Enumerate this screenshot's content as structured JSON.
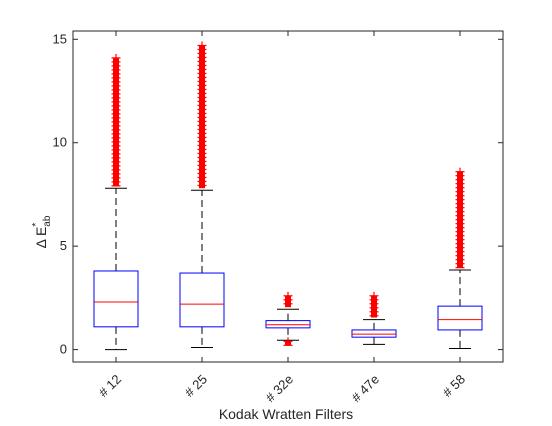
{
  "chart_data": {
    "type": "box",
    "xlabel": "Kodak Wratten Filters",
    "ylabel": {
      "prefix": "Δ E",
      "superscript": "*",
      "subscript": "ab"
    },
    "categories": [
      "# 12",
      "# 25",
      "# 32e",
      "# 47e",
      "# 58"
    ],
    "ylim": [
      -0.6,
      15.4
    ],
    "yticks": [
      0,
      5,
      10,
      15
    ],
    "grid": false,
    "colors": {
      "box": "#0000ff",
      "median": "#ff0000",
      "whisker": "#000000",
      "outlier": "#ff0000",
      "axis": "#262626"
    },
    "boxes": [
      {
        "category": "# 12",
        "lower_whisker": 0.0,
        "q1": 1.1,
        "median": 2.3,
        "q3": 3.8,
        "upper_whisker": 7.8,
        "outliers_low": [],
        "outliers_high": [
          7.9,
          14.1
        ]
      },
      {
        "category": "# 25",
        "lower_whisker": 0.1,
        "q1": 1.1,
        "median": 2.2,
        "q3": 3.7,
        "upper_whisker": 7.7,
        "outliers_low": [],
        "outliers_high": [
          7.8,
          14.7
        ]
      },
      {
        "category": "# 32e",
        "lower_whisker": 0.45,
        "q1": 1.05,
        "median": 1.2,
        "q3": 1.4,
        "upper_whisker": 1.95,
        "outliers_low": [
          0.2,
          0.4
        ],
        "outliers_high": [
          2.05,
          2.6
        ]
      },
      {
        "category": "# 47e",
        "lower_whisker": 0.25,
        "q1": 0.6,
        "median": 0.75,
        "q3": 0.95,
        "upper_whisker": 1.45,
        "outliers_low": [],
        "outliers_high": [
          1.55,
          2.6
        ]
      },
      {
        "category": "# 58",
        "lower_whisker": 0.05,
        "q1": 0.95,
        "median": 1.45,
        "q3": 2.1,
        "upper_whisker": 3.85,
        "outliers_low": [],
        "outliers_high": [
          3.95,
          8.6
        ]
      }
    ]
  }
}
